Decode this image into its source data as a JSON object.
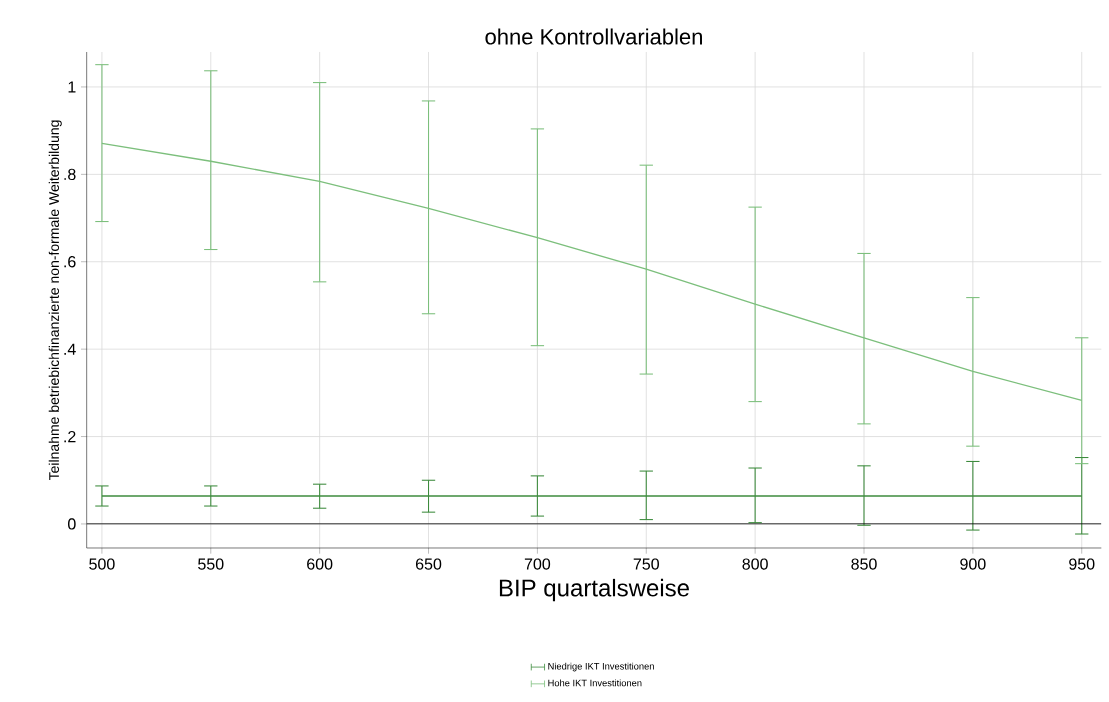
{
  "chart_data": {
    "type": "line",
    "title": "ohne Kontrollvariablen",
    "xlabel": "BIP quartalsweise",
    "ylabel": "Teilnahme betriebichfinanzierte non-formale Weiterbildung",
    "x": [
      500,
      550,
      600,
      650,
      700,
      750,
      800,
      850,
      900,
      950
    ],
    "series": [
      {
        "name": "Niedrige IKT Investitionen",
        "color": "#3d8b3d",
        "values": [
          0.064,
          0.064,
          0.064,
          0.064,
          0.064,
          0.064,
          0.064,
          0.064,
          0.064,
          0.064
        ],
        "errors": [
          [
            0.041,
            0.087
          ],
          [
            0.041,
            0.087
          ],
          [
            0.036,
            0.091
          ],
          [
            0.027,
            0.1
          ],
          [
            0.018,
            0.11
          ],
          [
            0.01,
            0.121
          ],
          [
            0.003,
            0.128
          ],
          [
            -0.003,
            0.133
          ],
          [
            -0.014,
            0.143
          ],
          [
            -0.023,
            0.152
          ]
        ]
      },
      {
        "name": "Hohe IKT Investitionen",
        "color": "#7cbf7c",
        "values": [
          0.871,
          0.83,
          0.784,
          0.722,
          0.655,
          0.583,
          0.503,
          0.426,
          0.349,
          0.283
        ],
        "errors": [
          [
            0.692,
            1.051
          ],
          [
            0.628,
            1.037
          ],
          [
            0.554,
            1.01
          ],
          [
            0.481,
            0.968
          ],
          [
            0.408,
            0.904
          ],
          [
            0.343,
            0.821
          ],
          [
            0.28,
            0.725
          ],
          [
            0.229,
            0.619
          ],
          [
            0.178,
            0.518
          ],
          [
            0.138,
            0.426
          ]
        ]
      }
    ],
    "xlim": [
      493,
      959
    ],
    "ylim": [
      -0.055,
      1.08
    ],
    "xticks": [
      500,
      550,
      600,
      650,
      700,
      750,
      800,
      850,
      900,
      950
    ],
    "yticks": [
      0,
      {
        "value": 0.2,
        "label": ".2"
      },
      {
        "value": 0.4,
        "label": ".4"
      },
      {
        "value": 0.6,
        "label": ".6"
      },
      {
        "value": 0.8,
        "label": ".8"
      },
      1
    ],
    "ref_lines": [
      {
        "axis": "y",
        "value": 0,
        "color": "#000000"
      }
    ],
    "grid": true,
    "legend": "bottom",
    "marker": "none",
    "line_style": "solid"
  }
}
